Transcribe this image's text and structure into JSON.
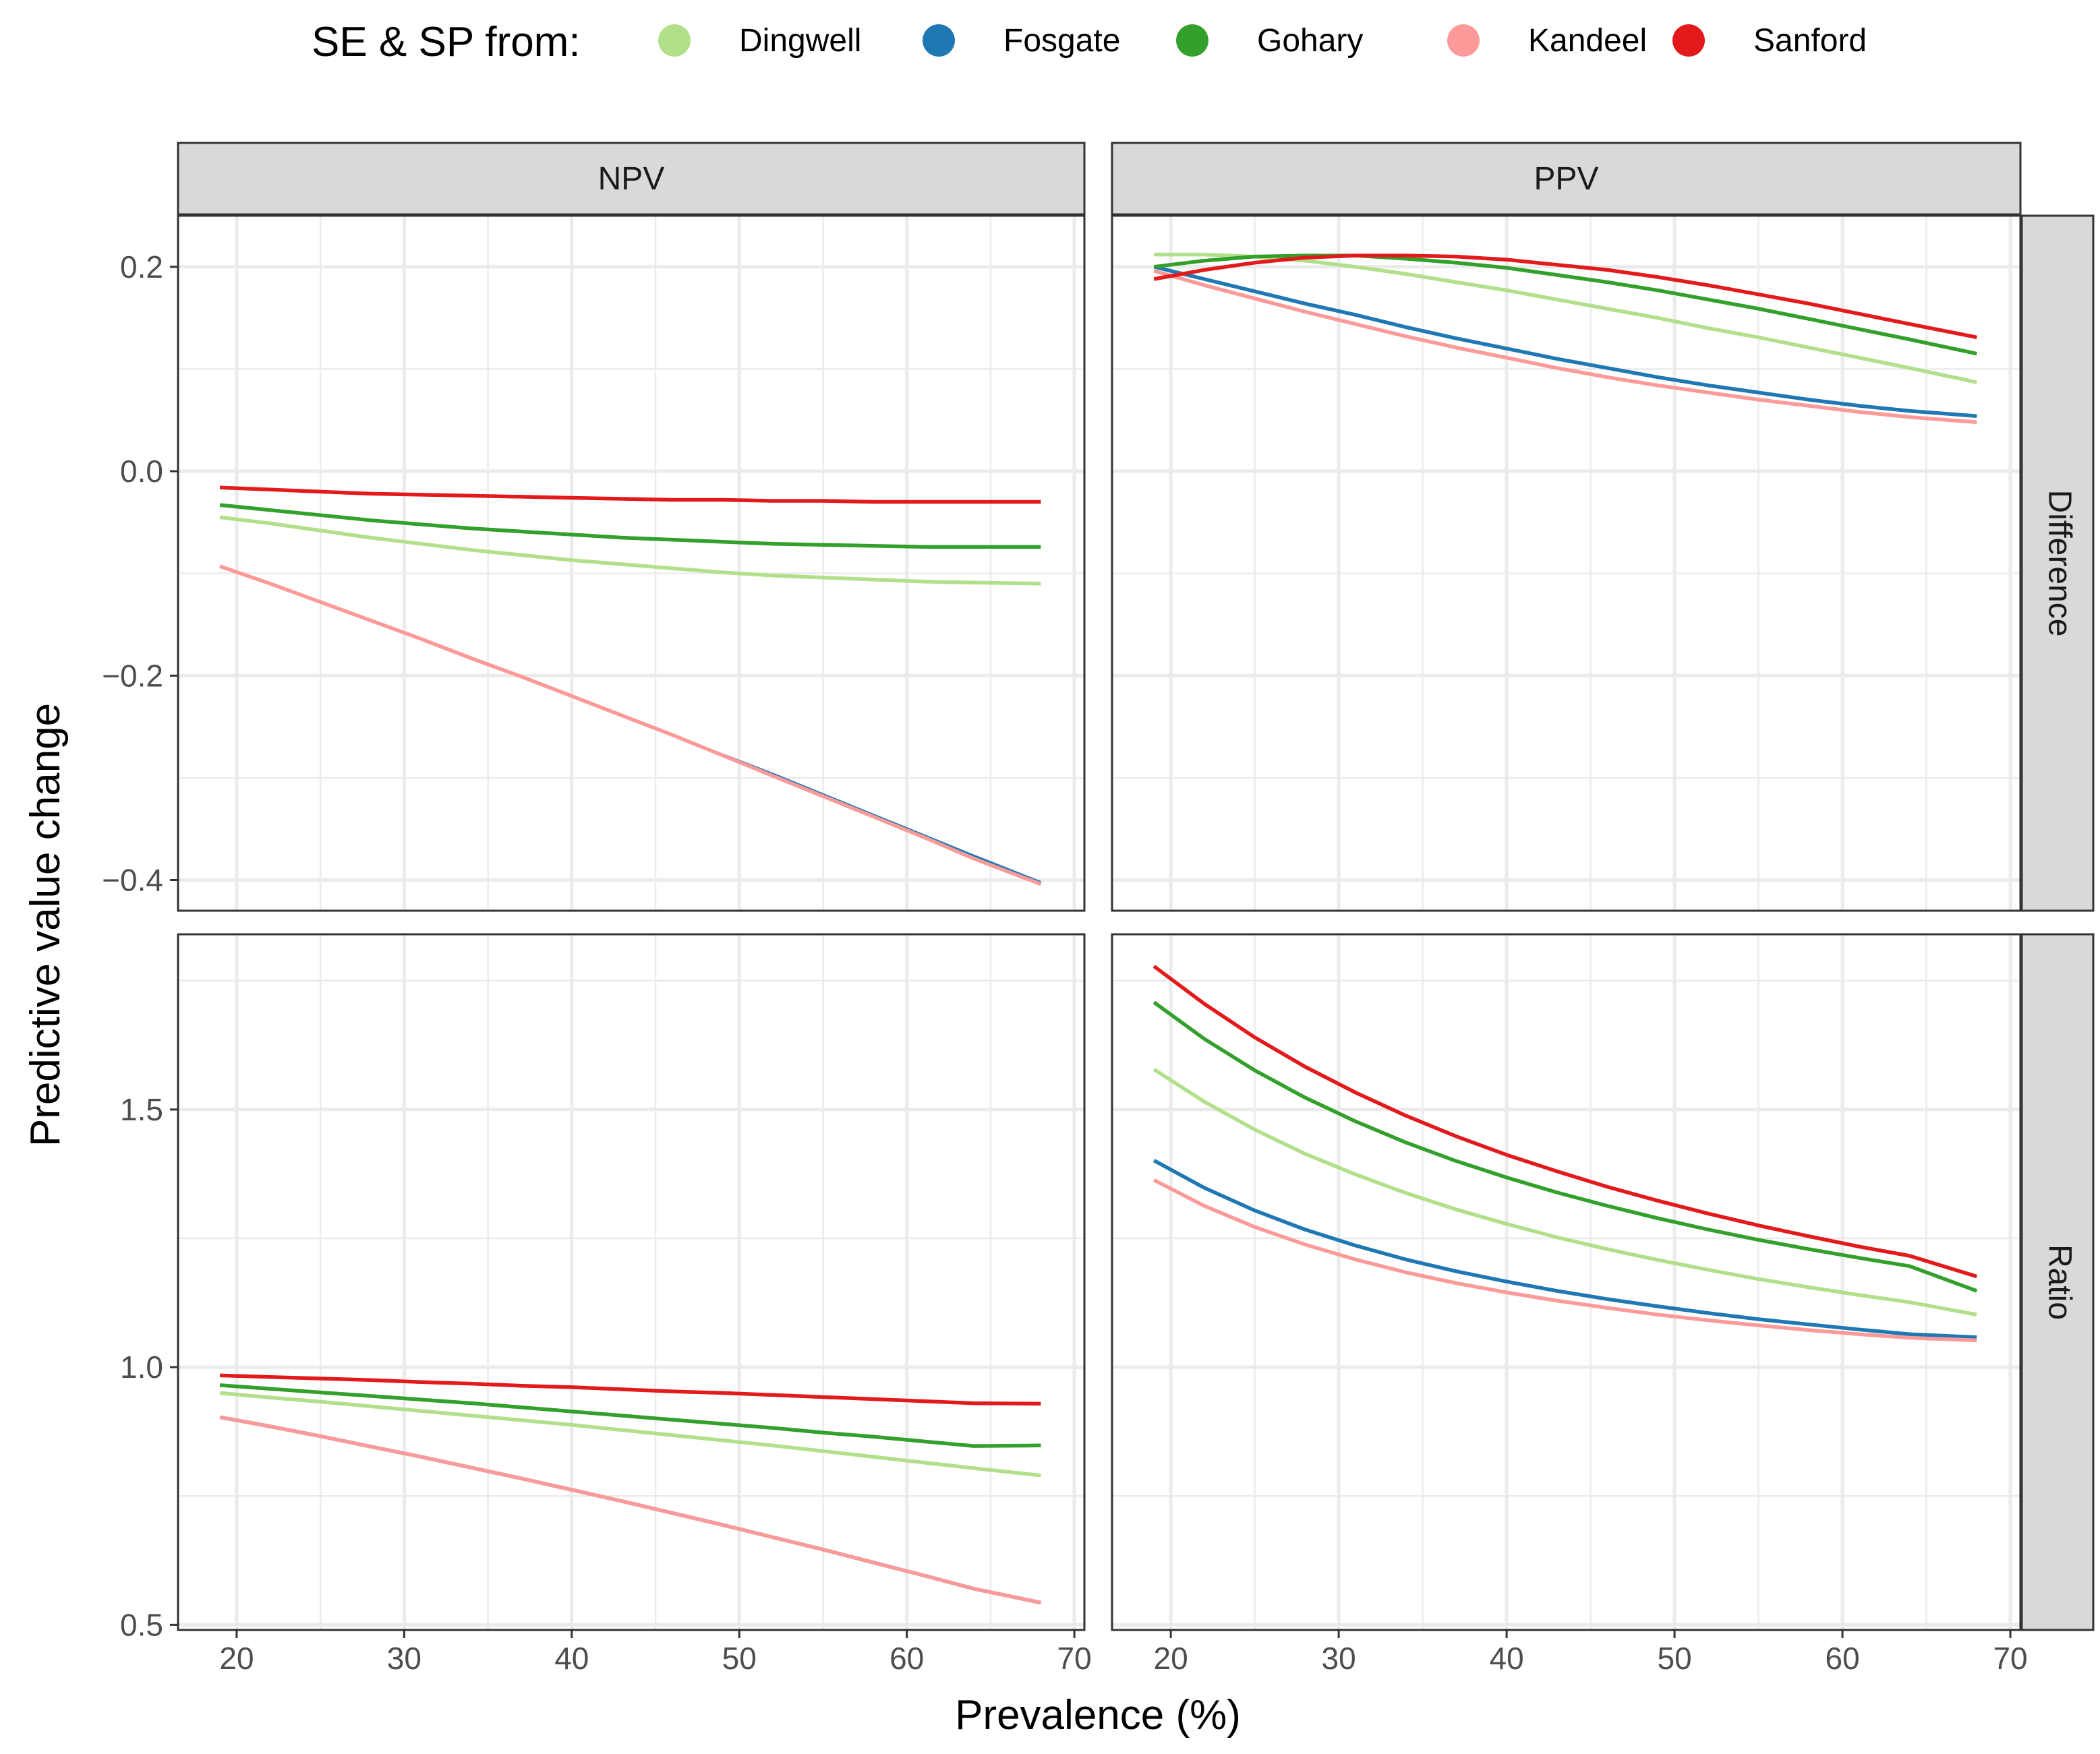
{
  "chart_data": {
    "type": "line",
    "legend": {
      "title": "SE & SP from:",
      "position": "top",
      "entries": [
        {
          "name": "Dingwell",
          "color": "#b2df8a"
        },
        {
          "name": "Fosgate",
          "color": "#1f78b4"
        },
        {
          "name": "Gohary",
          "color": "#33a02c"
        },
        {
          "name": "Kandeel",
          "color": "#fb9a99"
        },
        {
          "name": "Sanford",
          "color": "#e31a1c"
        }
      ]
    },
    "xlabel": "Prevalence (%)",
    "ylabel": "Predictive value change",
    "x_ticks": [
      "20",
      "30",
      "40",
      "50",
      "60",
      "70"
    ],
    "xlim": [
      16.5,
      70.6
    ],
    "x": [
      19,
      22,
      25,
      28,
      31,
      34,
      37,
      40,
      43,
      46,
      49,
      52,
      55,
      58,
      61,
      64,
      68
    ],
    "columns": [
      "NPV",
      "PPV"
    ],
    "rows": [
      {
        "name": "Difference",
        "ylim": [
          -0.43,
          0.25
        ],
        "y_ticks": [
          "0.2",
          "0.0",
          "−0.2",
          "−0.4"
        ],
        "y_tick_values": [
          0.2,
          0.0,
          -0.2,
          -0.4
        ]
      },
      {
        "name": "Ratio",
        "ylim": [
          0.49,
          1.84
        ],
        "y_ticks": [
          "1.5",
          "1.0",
          "0.5"
        ],
        "y_tick_values": [
          1.5,
          1.0,
          0.5
        ]
      }
    ],
    "panels": [
      {
        "column": "NPV",
        "row": "Difference",
        "series": [
          {
            "name": "Dingwell",
            "values": [
              -0.045,
              -0.051,
              -0.058,
              -0.065,
              -0.071,
              -0.077,
              -0.082,
              -0.087,
              -0.091,
              -0.095,
              -0.099,
              -0.102,
              -0.104,
              -0.106,
              -0.108,
              -0.109,
              -0.11
            ]
          },
          {
            "name": "Fosgate",
            "values": [
              -0.093,
              -0.11,
              -0.128,
              -0.146,
              -0.164,
              -0.183,
              -0.201,
              -0.22,
              -0.239,
              -0.258,
              -0.277,
              -0.296,
              -0.316,
              -0.336,
              -0.356,
              -0.376,
              -0.402
            ]
          },
          {
            "name": "Gohary",
            "values": [
              -0.033,
              -0.038,
              -0.043,
              -0.048,
              -0.052,
              -0.056,
              -0.059,
              -0.062,
              -0.065,
              -0.067,
              -0.069,
              -0.071,
              -0.072,
              -0.073,
              -0.074,
              -0.074,
              -0.074
            ]
          },
          {
            "name": "Kandeel",
            "values": [
              -0.093,
              -0.11,
              -0.128,
              -0.146,
              -0.164,
              -0.183,
              -0.201,
              -0.22,
              -0.239,
              -0.258,
              -0.278,
              -0.298,
              -0.318,
              -0.338,
              -0.358,
              -0.379,
              -0.404
            ]
          },
          {
            "name": "Sanford",
            "values": [
              -0.016,
              -0.018,
              -0.02,
              -0.022,
              -0.023,
              -0.024,
              -0.025,
              -0.026,
              -0.027,
              -0.028,
              -0.028,
              -0.029,
              -0.029,
              -0.03,
              -0.03,
              -0.03,
              -0.03
            ]
          }
        ]
      },
      {
        "column": "PPV",
        "row": "Difference",
        "series": [
          {
            "name": "Dingwell",
            "values": [
              0.212,
              0.212,
              0.21,
              0.206,
              0.2,
              0.193,
              0.185,
              0.177,
              0.168,
              0.159,
              0.15,
              0.14,
              0.131,
              0.121,
              0.111,
              0.101,
              0.087
            ]
          },
          {
            "name": "Fosgate",
            "values": [
              0.2,
              0.188,
              0.176,
              0.164,
              0.153,
              0.141,
              0.13,
              0.12,
              0.11,
              0.101,
              0.092,
              0.084,
              0.077,
              0.07,
              0.064,
              0.059,
              0.054
            ]
          },
          {
            "name": "Gohary",
            "values": [
              0.2,
              0.206,
              0.21,
              0.211,
              0.211,
              0.208,
              0.204,
              0.199,
              0.192,
              0.185,
              0.177,
              0.168,
              0.159,
              0.149,
              0.139,
              0.129,
              0.115
            ]
          },
          {
            "name": "Kandeel",
            "values": [
              0.196,
              0.182,
              0.169,
              0.156,
              0.144,
              0.132,
              0.121,
              0.111,
              0.101,
              0.092,
              0.084,
              0.077,
              0.07,
              0.064,
              0.058,
              0.053,
              0.048
            ]
          },
          {
            "name": "Sanford",
            "values": [
              0.188,
              0.197,
              0.204,
              0.209,
              0.211,
              0.211,
              0.21,
              0.207,
              0.202,
              0.197,
              0.19,
              0.182,
              0.173,
              0.164,
              0.154,
              0.144,
              0.131
            ]
          }
        ]
      },
      {
        "column": "NPV",
        "row": "Ratio",
        "series": [
          {
            "name": "Dingwell",
            "values": [
              0.95,
              0.941,
              0.933,
              0.924,
              0.915,
              0.906,
              0.897,
              0.888,
              0.878,
              0.868,
              0.858,
              0.848,
              0.837,
              0.826,
              0.815,
              0.804,
              0.79
            ]
          },
          {
            "name": "Fosgate",
            "values": [
              0.903,
              0.885,
              0.866,
              0.846,
              0.826,
              0.805,
              0.784,
              0.762,
              0.74,
              0.717,
              0.694,
              0.67,
              0.646,
              0.621,
              0.596,
              0.57,
              0.543
            ]
          },
          {
            "name": "Gohary",
            "values": [
              0.965,
              0.958,
              0.951,
              0.944,
              0.937,
              0.93,
              0.922,
              0.914,
              0.906,
              0.898,
              0.89,
              0.882,
              0.873,
              0.865,
              0.856,
              0.847,
              0.848
            ]
          },
          {
            "name": "Kandeel",
            "values": [
              0.903,
              0.885,
              0.866,
              0.846,
              0.826,
              0.805,
              0.784,
              0.762,
              0.74,
              0.717,
              0.694,
              0.67,
              0.646,
              0.621,
              0.596,
              0.57,
              0.543
            ]
          },
          {
            "name": "Sanford",
            "values": [
              0.984,
              0.981,
              0.978,
              0.975,
              0.971,
              0.968,
              0.964,
              0.961,
              0.957,
              0.953,
              0.95,
              0.946,
              0.942,
              0.938,
              0.934,
              0.93,
              0.929
            ]
          }
        ]
      },
      {
        "column": "PPV",
        "row": "Ratio",
        "series": [
          {
            "name": "Dingwell",
            "values": [
              1.578,
              1.515,
              1.461,
              1.414,
              1.374,
              1.338,
              1.306,
              1.278,
              1.252,
              1.229,
              1.208,
              1.189,
              1.171,
              1.155,
              1.14,
              1.126,
              1.102
            ]
          },
          {
            "name": "Fosgate",
            "values": [
              1.401,
              1.348,
              1.304,
              1.267,
              1.236,
              1.209,
              1.186,
              1.166,
              1.148,
              1.132,
              1.118,
              1.105,
              1.093,
              1.083,
              1.073,
              1.064,
              1.058
            ]
          },
          {
            "name": "Gohary",
            "values": [
              1.708,
              1.637,
              1.576,
              1.523,
              1.477,
              1.436,
              1.4,
              1.368,
              1.339,
              1.313,
              1.289,
              1.267,
              1.247,
              1.229,
              1.212,
              1.196,
              1.148
            ]
          },
          {
            "name": "Kandeel",
            "values": [
              1.363,
              1.313,
              1.272,
              1.238,
              1.209,
              1.184,
              1.163,
              1.145,
              1.129,
              1.115,
              1.102,
              1.091,
              1.081,
              1.072,
              1.064,
              1.057,
              1.052
            ]
          },
          {
            "name": "Sanford",
            "values": [
              1.778,
              1.705,
              1.64,
              1.583,
              1.533,
              1.488,
              1.448,
              1.412,
              1.38,
              1.35,
              1.323,
              1.298,
              1.275,
              1.254,
              1.234,
              1.216,
              1.176
            ]
          }
        ]
      }
    ]
  }
}
